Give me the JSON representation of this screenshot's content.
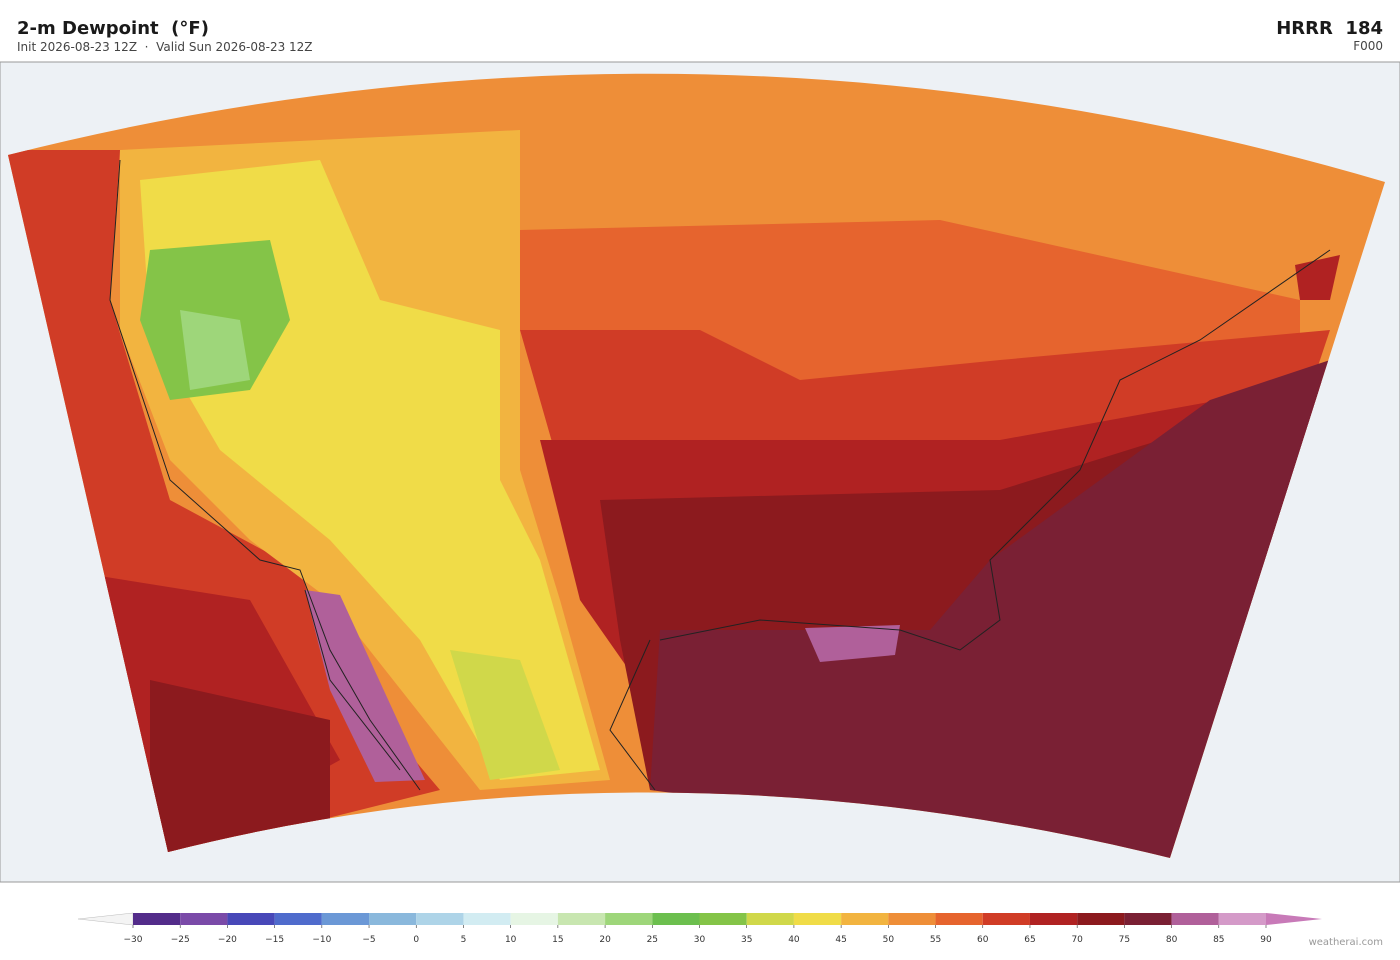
{
  "header": {
    "title": "2-m Dewpoint  (°F)",
    "subtitle": "Init 2026-08-23 12Z  ·  Valid Sun 2026-08-23 12Z",
    "model": "HRRR  184",
    "forecast_hour": "F000"
  },
  "colorbar": {
    "ticks": [
      {
        "value": -30,
        "label": "−30"
      },
      {
        "value": -25,
        "label": "−25"
      },
      {
        "value": -20,
        "label": "−20"
      },
      {
        "value": -15,
        "label": "−15"
      },
      {
        "value": -10,
        "label": "−10"
      },
      {
        "value": -5,
        "label": "−5"
      },
      0,
      5,
      10,
      15,
      20,
      25,
      30,
      35,
      40,
      45,
      50,
      55,
      60,
      65,
      70,
      75,
      80,
      85,
      90
    ],
    "colors": [
      "#532c8a",
      "#7a4aa8",
      "#4848b8",
      "#4f6bcc",
      "#6b98d6",
      "#8ab8dc",
      "#aed4e8",
      "#d2ecf2",
      "#e6f5e4",
      "#c8e6b0",
      "#9ed67a",
      "#6cbf4e",
      "#84c448",
      "#d0d84a",
      "#f0dc48",
      "#f2b440",
      "#ee8e38",
      "#e6642e",
      "#d03c26",
      "#b02222",
      "#8c1a1e",
      "#7a2034",
      "#b0609a",
      "#d49ac8"
    ],
    "under_color": "#f4f4f4",
    "over_color": "#c87ab8"
  },
  "watermark": "weatherai.com"
}
